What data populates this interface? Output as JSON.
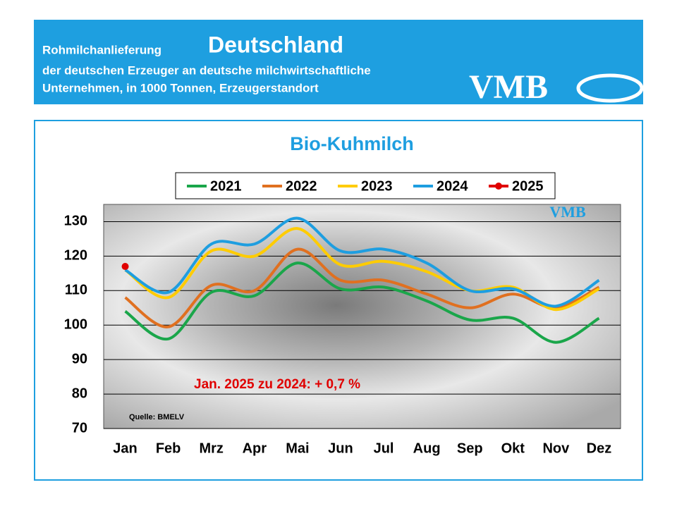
{
  "header": {
    "line1a": "Rohmilchanlieferung",
    "line1b": "Deutschland",
    "line2": "der deutschen Erzeuger an deutsche milchwirtschaftliche",
    "line3": "Unternehmen, in 1000 Tonnen, Erzeugerstandort",
    "logo": "VMB"
  },
  "chart_data": {
    "type": "line",
    "title": "Bio-Kuhmilch",
    "categories": [
      "Jan",
      "Feb",
      "Mrz",
      "Apr",
      "Mai",
      "Jun",
      "Jul",
      "Aug",
      "Sep",
      "Okt",
      "Nov",
      "Dez"
    ],
    "series": [
      {
        "name": "2021",
        "color": "#1aa64a",
        "values": [
          104,
          96,
          109.5,
          108.5,
          118,
          110.5,
          111,
          107,
          101.5,
          102,
          95,
          102
        ]
      },
      {
        "name": "2022",
        "color": "#e07020",
        "values": [
          108,
          99.5,
          111.5,
          110,
          122,
          113,
          113,
          109,
          105,
          109,
          105,
          111
        ]
      },
      {
        "name": "2023",
        "color": "#ffcc00",
        "values": [
          116,
          108,
          121.5,
          120,
          128,
          117.5,
          118.5,
          115.5,
          110,
          111,
          104.5,
          110.5
        ]
      },
      {
        "name": "2024",
        "color": "#1e9ee0",
        "values": [
          116,
          109.5,
          123.5,
          123.5,
          131,
          121.5,
          122,
          118,
          110,
          110.5,
          105.5,
          113
        ]
      },
      {
        "name": "2025",
        "color": "#e00000",
        "marker": true,
        "values": [
          117,
          null,
          null,
          null,
          null,
          null,
          null,
          null,
          null,
          null,
          null,
          null
        ]
      }
    ],
    "ylim": [
      70,
      135
    ],
    "yticks": [
      70,
      80,
      90,
      100,
      110,
      120,
      130
    ],
    "grid": true,
    "annotation": "Jan. 2025 zu 2024: + 0,7 %",
    "source": "Quelle:  BMELV",
    "watermark": "VMB"
  }
}
